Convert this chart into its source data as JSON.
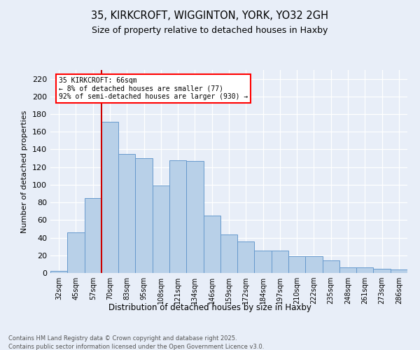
{
  "title_line1": "35, KIRKCROFT, WIGGINTON, YORK, YO32 2GH",
  "title_line2": "Size of property relative to detached houses in Haxby",
  "xlabel": "Distribution of detached houses by size in Haxby",
  "ylabel": "Number of detached properties",
  "categories": [
    "32sqm",
    "45sqm",
    "57sqm",
    "70sqm",
    "83sqm",
    "95sqm",
    "108sqm",
    "121sqm",
    "134sqm",
    "146sqm",
    "159sqm",
    "172sqm",
    "184sqm",
    "197sqm",
    "210sqm",
    "222sqm",
    "235sqm",
    "248sqm",
    "261sqm",
    "273sqm",
    "286sqm"
  ],
  "values": [
    2,
    46,
    85,
    171,
    135,
    130,
    99,
    128,
    127,
    65,
    44,
    36,
    25,
    25,
    19,
    19,
    14,
    6,
    6,
    5,
    4
  ],
  "bar_color": "#b8d0e8",
  "bar_edge_color": "#6699cc",
  "vline_color": "#cc0000",
  "vline_index": 2.5,
  "annotation_text": "35 KIRKCROFT: 66sqm\n← 8% of detached houses are smaller (77)\n92% of semi-detached houses are larger (930) →",
  "ylim": [
    0,
    230
  ],
  "yticks": [
    0,
    20,
    40,
    60,
    80,
    100,
    120,
    140,
    160,
    180,
    200,
    220
  ],
  "footer_text": "Contains HM Land Registry data © Crown copyright and database right 2025.\nContains public sector information licensed under the Open Government Licence v3.0.",
  "bg_color": "#e8eef8",
  "grid_color": "#ffffff"
}
